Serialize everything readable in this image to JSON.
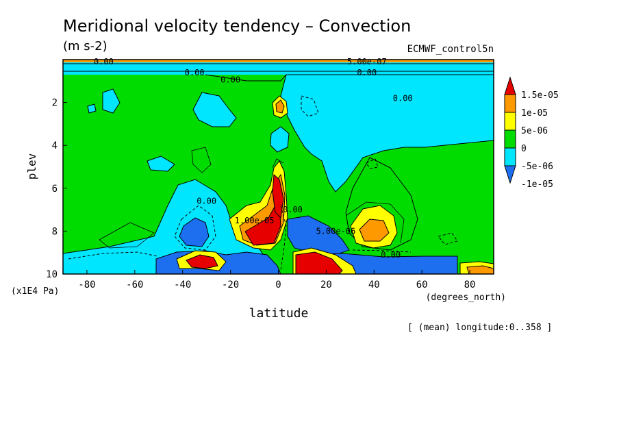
{
  "chart_data": {
    "type": "heatmap",
    "title": "Meridional velocity tendency – Convection",
    "units": "(m s-2)",
    "dataset": "ECMWF_control5n",
    "xlabel": "latitude",
    "x_units": "(degrees_north)",
    "ylabel": "plev",
    "y_units": "(x1E4 Pa)",
    "note": "[ (mean) longitude:0..358 ]",
    "xlim": [
      -90,
      90
    ],
    "ylim": [
      10,
      0
    ],
    "x_ticks": [
      -80,
      -60,
      -40,
      -20,
      0,
      20,
      40,
      60,
      80
    ],
    "x_tick_labels": [
      "-80",
      "-60",
      "-40",
      "-20",
      "0",
      "20",
      "40",
      "60",
      "80"
    ],
    "y_ticks": [
      2,
      4,
      6,
      8,
      10
    ],
    "y_tick_labels": [
      "2",
      "4",
      "6",
      "8",
      "10"
    ],
    "colorbar": {
      "levels": [
        -1e-05,
        -5e-06,
        0,
        5e-06,
        1e-05,
        1.5e-05
      ],
      "labels": [
        "1.5e-05",
        "1e-05",
        "5e-06",
        "0",
        "-5e-06",
        "-1e-05"
      ],
      "colors": [
        "#1e6ef0",
        "#00e6ff",
        "#00dc00",
        "#ffff00",
        "#ff9900",
        "#e60000"
      ]
    },
    "contour_labels": [
      {
        "text": "0.00",
        "lat": -73,
        "plev": 0.1
      },
      {
        "text": "0.00",
        "lat": -35,
        "plev": 0.6
      },
      {
        "text": "0.00",
        "lat": -20,
        "plev": 0.95
      },
      {
        "text": "5.00e-07",
        "lat": 37,
        "plev": 0.1
      },
      {
        "text": "0.00",
        "lat": 37,
        "plev": 0.6
      },
      {
        "text": "0.00",
        "lat": 52,
        "plev": 1.8
      },
      {
        "text": "0.00",
        "lat": -30,
        "plev": 6.6
      },
      {
        "text": "1.00e-05",
        "lat": -10,
        "plev": 7.5
      },
      {
        "text": "0.00",
        "lat": 6,
        "plev": 7.0
      },
      {
        "text": "5.00e-06",
        "lat": 24,
        "plev": 8.0
      },
      {
        "text": "0.00",
        "lat": 47,
        "plev": 9.1
      }
    ]
  }
}
